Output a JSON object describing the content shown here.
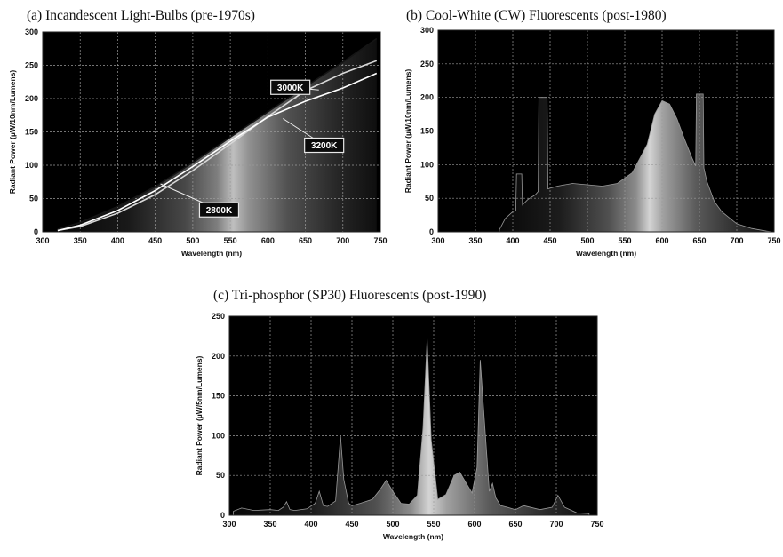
{
  "chart_data": [
    {
      "id": "a",
      "type": "line",
      "title": "(a)  Incandescent Light-Bulbs (pre-1970s)",
      "xlabel": "Wavelength (nm)",
      "ylabel": "Radiant Power (µW/10nm/Lumens)",
      "xlim": [
        300,
        750
      ],
      "ylim": [
        0,
        300
      ],
      "xticks": [
        300,
        350,
        400,
        450,
        500,
        550,
        600,
        650,
        700,
        750
      ],
      "yticks": [
        0,
        50,
        100,
        150,
        200,
        250,
        300
      ],
      "grid": true,
      "series": [
        {
          "name": "3000K",
          "x": [
            320,
            350,
            400,
            450,
            500,
            550,
            600,
            650,
            700,
            745
          ],
          "y": [
            4,
            14,
            38,
            68,
            104,
            142,
            180,
            218,
            255,
            290
          ]
        },
        {
          "name": "3200K",
          "x": [
            320,
            350,
            400,
            450,
            500,
            550,
            600,
            650,
            700,
            745
          ],
          "y": [
            2,
            8,
            28,
            56,
            92,
            132,
            173,
            212,
            238,
            257
          ]
        },
        {
          "name": "2800K",
          "x": [
            320,
            350,
            400,
            450,
            500,
            550,
            600,
            650,
            700,
            745
          ],
          "y": [
            2,
            10,
            32,
            62,
            98,
            136,
            172,
            196,
            216,
            238
          ]
        }
      ],
      "annotations": [
        {
          "text": "3000K",
          "x": 630,
          "y": 217,
          "target": [
            668,
            213
          ]
        },
        {
          "text": "3200K",
          "x": 675,
          "y": 130,
          "target": [
            620,
            170
          ]
        },
        {
          "text": "2800K",
          "x": 535,
          "y": 33,
          "target": [
            457,
            72
          ]
        }
      ]
    },
    {
      "id": "b",
      "type": "area",
      "title": "(b)  Cool-White (CW) Fluorescents (post-1980)",
      "xlabel": "Wavelength (nm)",
      "ylabel": "Radiant Power (µW/10nm/Lumens)",
      "xlim": [
        300,
        750
      ],
      "ylim": [
        0,
        300
      ],
      "xticks": [
        300,
        350,
        400,
        450,
        500,
        550,
        600,
        650,
        700,
        750
      ],
      "yticks": [
        0,
        50,
        100,
        150,
        200,
        250,
        300
      ],
      "grid": true,
      "series": [
        {
          "name": "",
          "x": [
            382,
            390,
            400,
            404,
            405,
            412,
            413,
            420,
            430,
            434,
            435,
            446,
            447,
            460,
            480,
            500,
            520,
            540,
            560,
            580,
            590,
            600,
            610,
            620,
            630,
            640,
            645,
            646,
            655,
            656,
            660,
            670,
            680,
            700,
            720,
            740,
            748
          ],
          "y": [
            3,
            20,
            30,
            32,
            86,
            86,
            40,
            48,
            55,
            60,
            200,
            200,
            64,
            68,
            72,
            70,
            68,
            72,
            88,
            130,
            175,
            195,
            190,
            168,
            138,
            110,
            98,
            205,
            205,
            95,
            75,
            45,
            30,
            12,
            5,
            1,
            0
          ]
        }
      ]
    },
    {
      "id": "c",
      "type": "area",
      "title": "(c)  Tri-phosphor (SP30) Fluorescents (post-1990)",
      "xlabel": "Wavelength (nm)",
      "ylabel": "Radiant Power (µW/5nm/Lumens)",
      "xlim": [
        300,
        750
      ],
      "ylim": [
        0,
        250
      ],
      "xticks": [
        300,
        350,
        400,
        450,
        500,
        550,
        600,
        650,
        700,
        750
      ],
      "yticks": [
        0,
        50,
        100,
        150,
        200,
        250
      ],
      "grid": true,
      "series": [
        {
          "name": "",
          "x": [
            305,
            315,
            330,
            350,
            360,
            366,
            370,
            374,
            380,
            395,
            405,
            410,
            415,
            420,
            430,
            436,
            440,
            446,
            450,
            460,
            475,
            485,
            492,
            500,
            510,
            520,
            530,
            537,
            542,
            547,
            555,
            565,
            575,
            582,
            590,
            597,
            603,
            607,
            612,
            618,
            622,
            626,
            632,
            640,
            650,
            660,
            680,
            695,
            702,
            710,
            725,
            740
          ],
          "y": [
            5,
            9,
            6,
            7,
            6,
            10,
            17,
            7,
            6,
            8,
            15,
            30,
            12,
            11,
            18,
            100,
            45,
            15,
            12,
            15,
            20,
            33,
            44,
            30,
            15,
            14,
            25,
            110,
            222,
            95,
            20,
            26,
            50,
            54,
            40,
            28,
            60,
            195,
            120,
            30,
            40,
            22,
            12,
            10,
            7,
            12,
            7,
            10,
            25,
            10,
            3,
            2
          ]
        }
      ]
    }
  ]
}
